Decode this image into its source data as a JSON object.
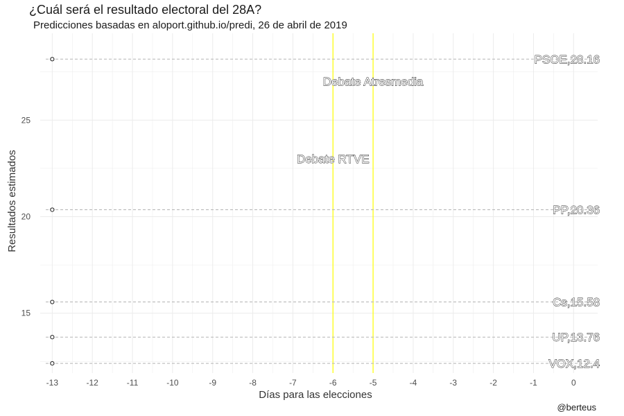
{
  "chart_data": {
    "type": "scatter",
    "title": "¿Cuál será el resultado electoral del 28A?",
    "subtitle": "Predicciones basadas en aloport.github.io/predi, 26 de abril de 2019",
    "xlabel": "Días para las elecciones",
    "ylabel": "Resultados estimados",
    "caption": "@berteus",
    "xlim": [
      -13.3,
      0.6
    ],
    "ylim": [
      11.9,
      29.5
    ],
    "x_ticks": [
      -13,
      -12,
      -11,
      -10,
      -9,
      -8,
      -7,
      -6,
      -5,
      -4,
      -3,
      -2,
      -1,
      0
    ],
    "y_ticks": [
      15,
      20,
      25
    ],
    "grid": true,
    "series": [
      {
        "name": "PSOE",
        "x": -13,
        "y": 28.16,
        "label": "PSOE,28.16"
      },
      {
        "name": "PP",
        "x": -13,
        "y": 20.36,
        "label": "PP,20.36"
      },
      {
        "name": "Cs",
        "x": -13,
        "y": 15.58,
        "label": "Cs,15.58"
      },
      {
        "name": "UP",
        "x": -13,
        "y": 13.76,
        "label": "UP,13.76"
      },
      {
        "name": "VOX",
        "x": -13,
        "y": 12.4,
        "label": "VOX,12.4"
      }
    ],
    "events": [
      {
        "label": "Debate RTVE",
        "x": -6,
        "label_y": 23
      },
      {
        "label": "Debate Atresmedia",
        "x": -5,
        "label_y": 27
      }
    ],
    "colors": {
      "event_line": "#ffff00",
      "reference_line": "#b3b3b3",
      "point": "#1a1a1a",
      "grid": "#ebebeb"
    }
  }
}
